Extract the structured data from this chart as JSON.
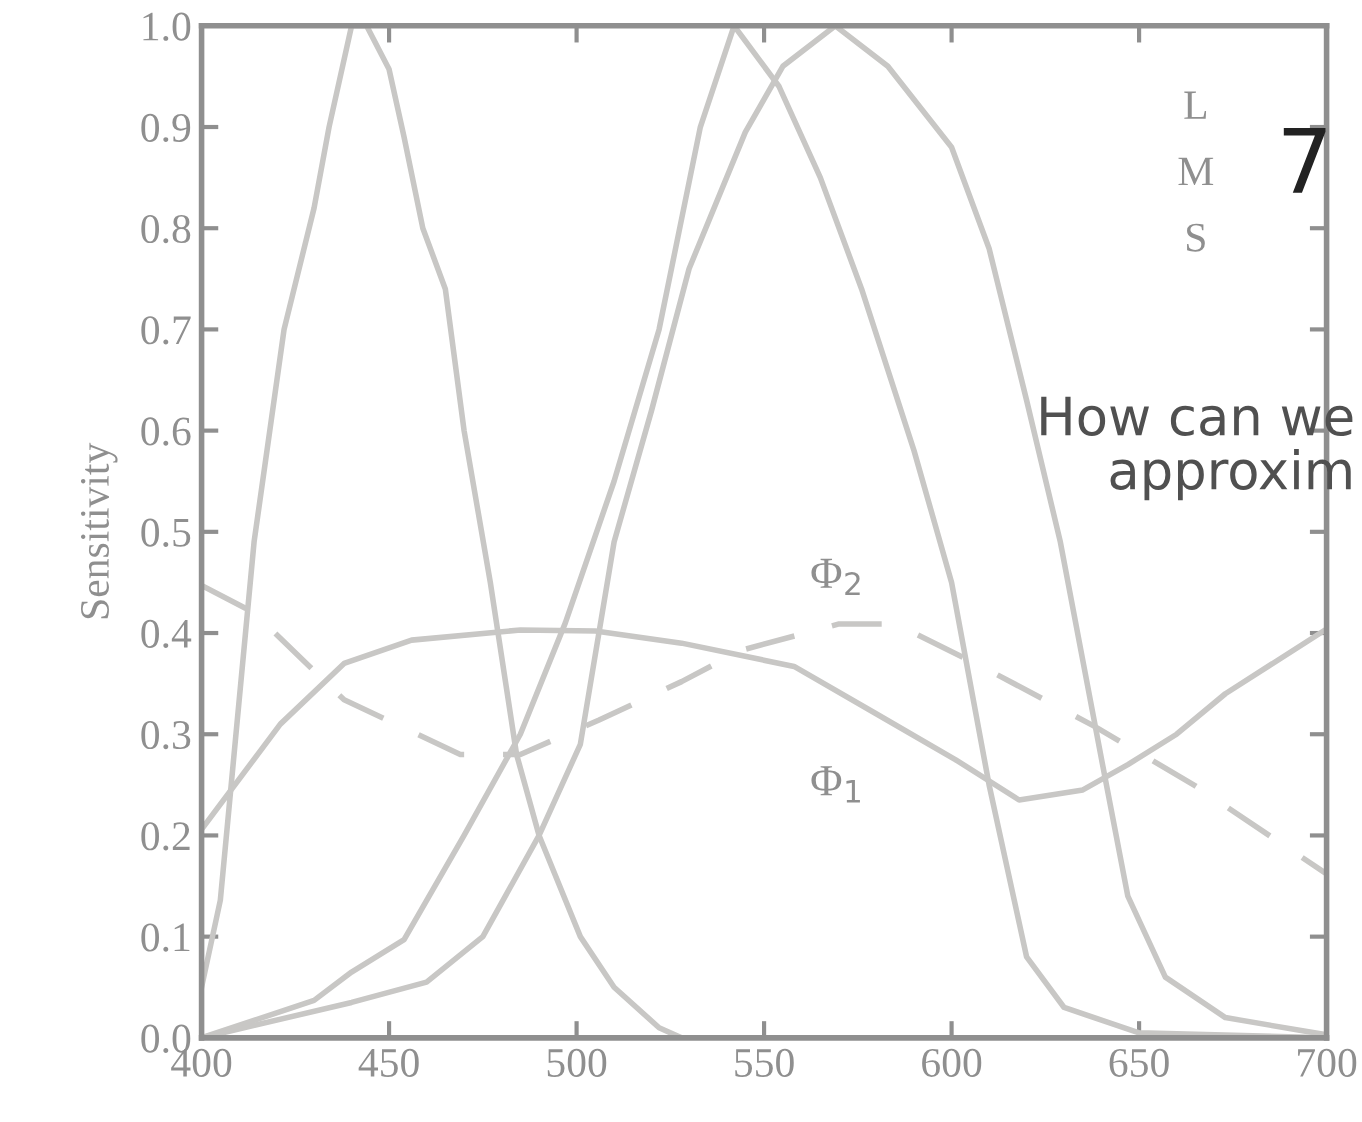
{
  "chart_data": {
    "type": "line",
    "ylabel": "Sensitivity",
    "xlim": [
      400,
      700
    ],
    "xticks": [
      400,
      450,
      500,
      550,
      600,
      650,
      700
    ],
    "ylim": [
      0,
      1
    ],
    "yticks": [
      {
        "value": 0,
        "label": "0.0"
      },
      0.1,
      0.2,
      0.3,
      0.4,
      0.5,
      0.6,
      0.7,
      0.8,
      0.9,
      {
        "value": 1,
        "label": "1.0"
      }
    ],
    "grid": false,
    "legend": false,
    "annotations": [
      "L",
      "M",
      "S",
      "7",
      "How can we",
      "approxim"
    ],
    "series": [
      {
        "color": "#c8c7c5",
        "x": [
          400,
          405,
          414,
          422,
          430,
          434,
          440,
          444,
          450,
          454,
          459,
          465,
          470,
          477,
          484,
          490,
          501,
          510,
          522,
          528,
          550,
          600,
          700
        ],
        "values": [
          0.05,
          0.136,
          0.49,
          0.7,
          0.82,
          0.9,
          1.0,
          1.0,
          0.957,
          0.89,
          0.8,
          0.74,
          0.6,
          0.45,
          0.28,
          0.2,
          0.1,
          0.05,
          0.01,
          0.0,
          0.0,
          0.0,
          0.0
        ]
      },
      {
        "color": "#c8c7c5",
        "x": [
          400,
          430,
          440,
          454,
          470,
          485,
          497,
          510,
          522,
          533,
          542,
          554,
          565,
          576,
          590,
          600,
          605,
          610,
          620,
          630,
          650,
          700
        ],
        "values": [
          0.0,
          0.037,
          0.065,
          0.097,
          0.2,
          0.3,
          0.41,
          0.55,
          0.7,
          0.9,
          1.0,
          0.94,
          0.85,
          0.74,
          0.58,
          0.45,
          0.35,
          0.25,
          0.08,
          0.03,
          0.005,
          0.0
        ]
      },
      {
        "color": "#c8c7c5",
        "x": [
          400,
          440,
          460,
          475,
          490,
          501,
          510,
          520,
          530,
          545,
          555,
          569,
          583,
          600,
          610,
          620,
          629,
          640,
          647,
          657,
          673,
          700
        ],
        "values": [
          0.0,
          0.035,
          0.055,
          0.1,
          0.2,
          0.29,
          0.49,
          0.62,
          0.76,
          0.895,
          0.96,
          1.0,
          0.96,
          0.88,
          0.78,
          0.63,
          0.49,
          0.275,
          0.14,
          0.06,
          0.02,
          0.003
        ]
      },
      {
        "name": "Φ$_{1}$",
        "color": "#c8c7c5",
        "x": [
          400,
          421,
          438,
          456,
          485,
          505,
          528,
          558,
          580,
          601,
          618,
          635,
          647,
          660,
          673,
          700
        ],
        "values": [
          0.206,
          0.31,
          0.37,
          0.393,
          0.403,
          0.402,
          0.39,
          0.367,
          0.32,
          0.275,
          0.235,
          0.245,
          0.27,
          0.3,
          0.34,
          0.404
        ]
      },
      {
        "name": "Φ$_{2}$",
        "color": "#c8c7c5",
        "line_style": "dashed",
        "x": [
          400,
          414,
          438,
          469,
          485,
          506,
          528,
          544,
          570,
          585,
          608,
          638,
          665,
          700
        ],
        "values": [
          0.447,
          0.42,
          0.334,
          0.28,
          0.28,
          0.314,
          0.352,
          0.383,
          0.409,
          0.409,
          0.367,
          0.308,
          0.249,
          0.162
        ]
      }
    ]
  }
}
